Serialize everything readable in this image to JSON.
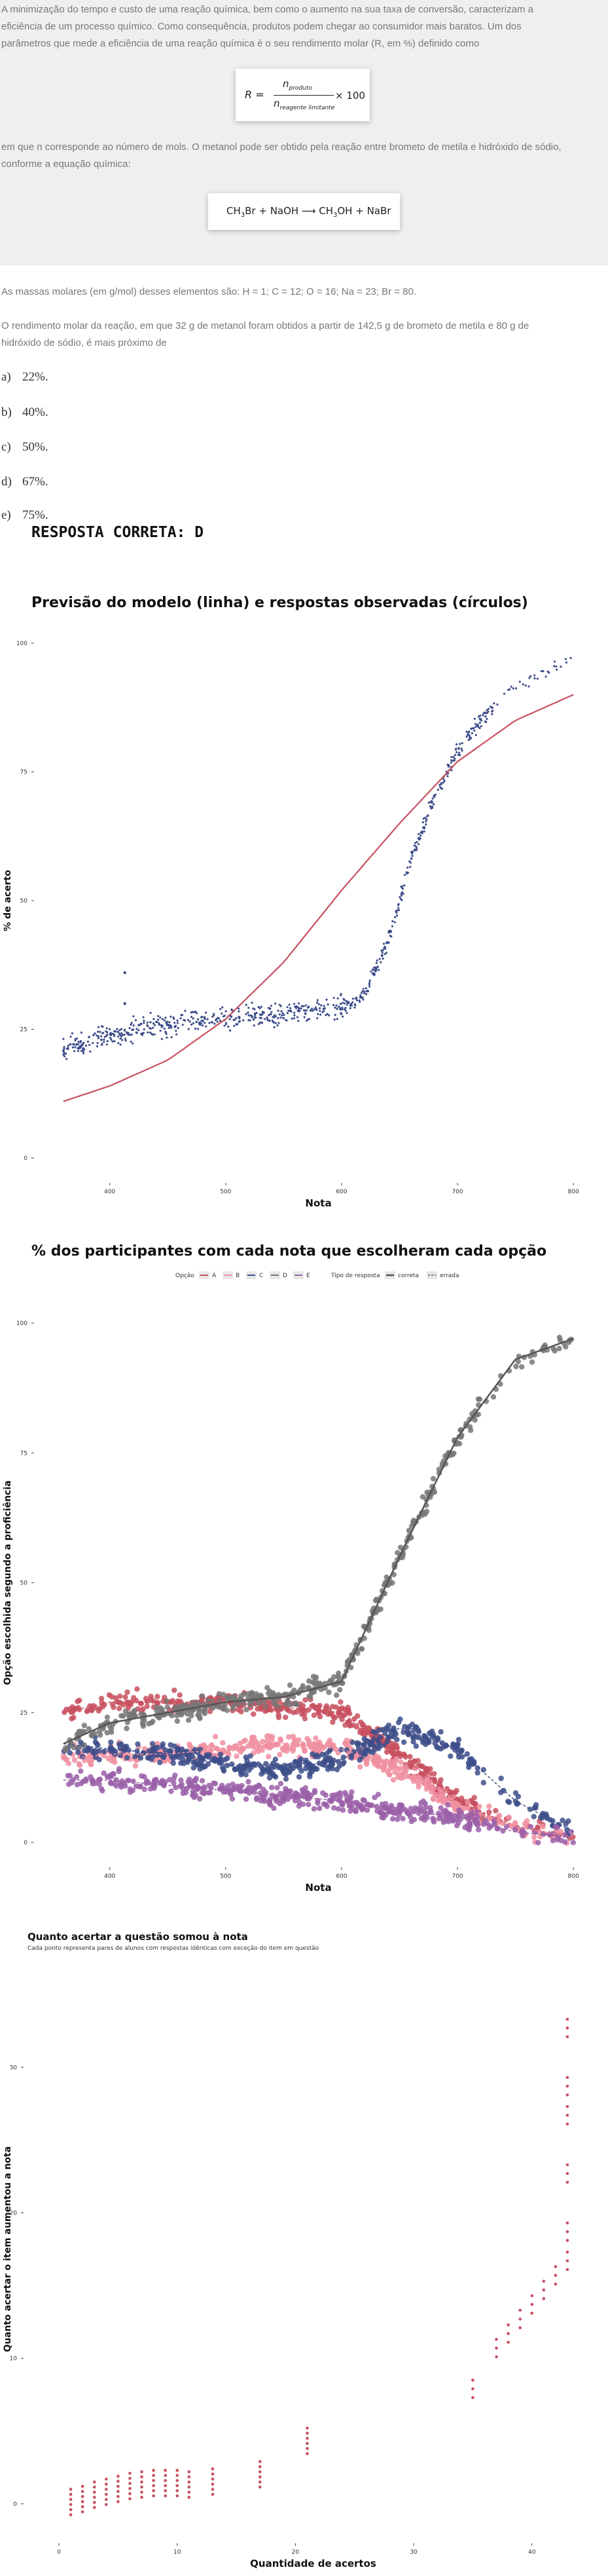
{
  "question": {
    "paragraph1": [
      "A minimização do tempo e custo de uma reação química, bem como o aumento na sua taxa de conversão, caracterizam a",
      "eficiência de um processo químico. Como consequência, produtos podem chegar ao consumidor mais baratos.  Um dos",
      "parâmetros que mede a eficiência de uma reação química é o seu rendimento molar (R, em %) definido como"
    ],
    "formula1": {
      "lhs": "R =",
      "num": "n",
      "num_sub": "produto",
      "den": "n",
      "den_sub": "reagente limitante",
      "rhs": "× 100"
    },
    "paragraph2": [
      "em que n corresponde ao número de mols. O metanol pode ser obtido pela reação entre brometo de metila e hidróxido de sódio,",
      "conforme a equação química:"
    ],
    "formula2": {
      "a": "CH",
      "a_sub": "3",
      "b": "Br + NaOH ⟶ CH",
      "b_sub": "3",
      "c": "OH + NaBr"
    },
    "paragraph3": "As massas molares (em g/mol) desses elementos são: H = 1; C = 12; O = 16; Na = 23; Br = 80.",
    "paragraph4": [
      "O rendimento molar da reação, em que 32 g de metanol foram obtidos a partir de 142,5 g de brometo de metila e 80 g de",
      "hidróxido de sódio, é mais próximo de"
    ],
    "options": [
      {
        "letter": "a)",
        "text": "22%."
      },
      {
        "letter": "b)",
        "text": "40%."
      },
      {
        "letter": "c)",
        "text": "50%."
      },
      {
        "letter": "d)",
        "text": "67%."
      },
      {
        "letter": "e)",
        "text": "75%."
      }
    ],
    "answer": "RESPOSTA CORRETA: D"
  },
  "chart_data": [
    {
      "type": "scatter",
      "title": "Previsão do modelo (linha) e respostas observadas (círculos)",
      "xlabel": "Nota",
      "ylabel": "% de acerto",
      "xticks": [
        400,
        500,
        600,
        700,
        800
      ],
      "xtick_labels": [
        "400",
        "500",
        "600",
        "700",
        "800"
      ],
      "yticks": [
        0,
        25,
        50,
        75,
        100
      ],
      "ytick_labels": [
        "0",
        "25",
        "50",
        "75",
        "100"
      ],
      "xlim": [
        355,
        805
      ],
      "ylim": [
        0,
        100
      ],
      "grid": false,
      "colors": {
        "points": "#3d4d8a",
        "model": "#c8505f"
      },
      "model_curve": {
        "x": [
          360,
          400,
          450,
          500,
          550,
          600,
          650,
          700,
          750,
          800
        ],
        "y": [
          11,
          14,
          19,
          27,
          38,
          52,
          65,
          77,
          85,
          90
        ]
      },
      "observed": {
        "x": [
          360,
          400,
          450,
          500,
          550,
          600,
          620,
          640,
          660,
          680,
          700,
          720,
          740,
          760,
          780,
          800
        ],
        "y": [
          21,
          24,
          26,
          27,
          28,
          29,
          32,
          42,
          58,
          70,
          79,
          85,
          90,
          93,
          94,
          98
        ]
      }
    },
    {
      "type": "line",
      "title": "% dos participantes com cada nota que escolheram cada opção",
      "xlabel": "Nota",
      "ylabel": "Opção escolhida segundo a proficiência",
      "legend": {
        "option_title": "Opção",
        "options": [
          "A",
          "B",
          "C",
          "D",
          "E"
        ],
        "type_title": "Tipo de resposta",
        "types": [
          "correta",
          "errada"
        ],
        "placement": "top"
      },
      "xticks": [
        400,
        500,
        600,
        700,
        800
      ],
      "xtick_labels": [
        "400",
        "500",
        "600",
        "700",
        "800"
      ],
      "yticks": [
        0,
        25,
        50,
        75,
        100
      ],
      "ytick_labels": [
        "0",
        "25",
        "50",
        "75",
        "100"
      ],
      "xlim": [
        355,
        805
      ],
      "ylim": [
        0,
        100
      ],
      "x": [
        360,
        400,
        450,
        500,
        550,
        600,
        650,
        700,
        750,
        800
      ],
      "series": [
        {
          "name": "A",
          "color": "#c8505f",
          "values": [
            25,
            27,
            27,
            27,
            26,
            25,
            17,
            8,
            3,
            1
          ]
        },
        {
          "name": "B",
          "color": "#f08fa0",
          "values": [
            16,
            17,
            17,
            18,
            19,
            18,
            14,
            7,
            3,
            1
          ]
        },
        {
          "name": "C",
          "color": "#3d4d8a",
          "values": [
            19,
            18,
            17,
            15,
            14,
            16,
            22,
            18,
            8,
            2
          ]
        },
        {
          "name": "D",
          "color": "#777777",
          "values": [
            19,
            23,
            25,
            27,
            28,
            31,
            55,
            78,
            93,
            97
          ]
        },
        {
          "name": "E",
          "color": "#9a5fa8",
          "values": [
            12,
            12,
            11,
            10,
            9,
            8,
            6,
            5,
            2,
            1
          ]
        }
      ]
    },
    {
      "type": "scatter",
      "title": "Quanto acertar a questão somou à nota",
      "subtitle": "Cada ponto representa pares de alunos com respostas idênticas com exceção do item em questão",
      "xlabel": "Quantidade de acertos",
      "ylabel": "Quanto acertar o item aumentou a nota",
      "xticks": [
        0,
        10,
        20,
        30,
        40
      ],
      "xtick_labels": [
        "0",
        "10",
        "20",
        "30",
        "40"
      ],
      "yticks": [
        0,
        10,
        20,
        30
      ],
      "ytick_labels": [
        "0",
        "10",
        "20",
        "30"
      ],
      "xlim": [
        -1,
        44
      ],
      "ylim": [
        -1,
        36
      ],
      "color": "#c8505f",
      "points": {
        "x": [
          1,
          2,
          3,
          4,
          5,
          6,
          7,
          8,
          9,
          10,
          11,
          13,
          17,
          21,
          35,
          37,
          38,
          39,
          40,
          41,
          42,
          43,
          44,
          45,
          46,
          47,
          48
        ],
        "y": [
          0.3,
          0.5,
          0.8,
          1.0,
          1.2,
          1.4,
          1.5,
          1.6,
          1.6,
          1.6,
          1.5,
          1.7,
          2.2,
          4.5,
          8.2,
          11,
          12,
          13,
          14,
          15,
          16,
          17,
          19,
          23,
          27,
          29,
          33
        ]
      }
    }
  ]
}
